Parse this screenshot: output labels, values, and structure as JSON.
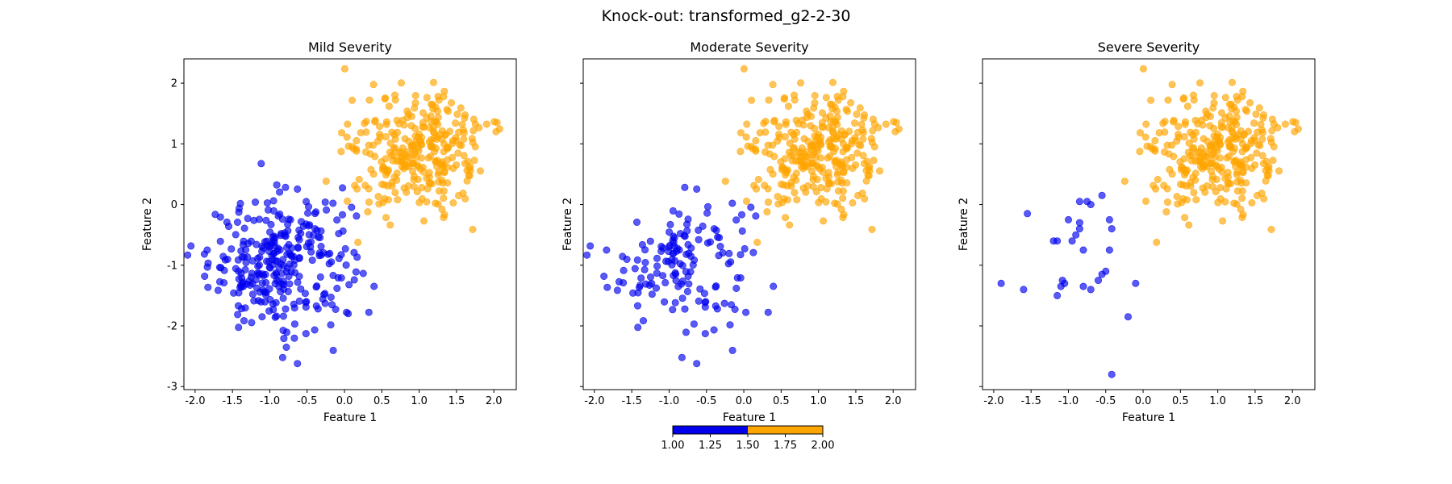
{
  "figure": {
    "title": "Knock-out: transformed_g2-2-30"
  },
  "colors": {
    "class1": "#0000ee",
    "class2": "#ffa500"
  },
  "colorbar": {
    "ticks": [
      "1.00",
      "1.25",
      "1.50",
      "1.75",
      "2.00"
    ],
    "range": [
      1.0,
      2.0
    ],
    "split": 1.5
  },
  "chart_data": [
    {
      "type": "scatter",
      "title": "Mild Severity",
      "xlabel": "Feature 1",
      "ylabel": "Feature 2",
      "xlim": [
        -2.15,
        2.3
      ],
      "ylim": [
        -3.05,
        2.4
      ],
      "xticks": [
        "-2.0",
        "-1.5",
        "-1.0",
        "-0.5",
        "0.0",
        "0.5",
        "1.0",
        "1.5",
        "2.0"
      ],
      "yticks": [
        "-3",
        "-2",
        "-1",
        "0",
        "1",
        "2"
      ],
      "grid": false,
      "series": [
        {
          "color_key": "class1",
          "count": 300,
          "center": [
            -0.85,
            -0.95
          ],
          "spread": [
            0.48,
            0.55
          ]
        },
        {
          "color_key": "class2",
          "count": 300,
          "center": [
            1.0,
            0.85
          ],
          "spread": [
            0.45,
            0.5
          ]
        }
      ]
    },
    {
      "type": "scatter",
      "title": "Moderate Severity",
      "xlabel": "Feature 1",
      "ylabel": "Feature 2",
      "xlim": [
        -2.15,
        2.3
      ],
      "ylim": [
        -3.05,
        2.4
      ],
      "xticks": [
        "-2.0",
        "-1.5",
        "-1.0",
        "-0.5",
        "0.0",
        "0.5",
        "1.0",
        "1.5",
        "2.0"
      ],
      "yticks": [],
      "grid": false,
      "series": [
        {
          "color_key": "class1",
          "count": 150,
          "center": [
            -0.85,
            -0.95
          ],
          "spread": [
            0.48,
            0.55
          ]
        },
        {
          "color_key": "class2",
          "count": 300,
          "center": [
            1.0,
            0.85
          ],
          "spread": [
            0.45,
            0.5
          ]
        }
      ]
    },
    {
      "type": "scatter",
      "title": "Severe Severity",
      "xlabel": "Feature 1",
      "ylabel": "Feature 2",
      "xlim": [
        -2.15,
        2.3
      ],
      "ylim": [
        -3.05,
        2.4
      ],
      "xticks": [
        "-2.0",
        "-1.5",
        "-1.0",
        "-0.5",
        "0.0",
        "0.5",
        "1.0",
        "1.5",
        "2.0"
      ],
      "yticks": [],
      "grid": false,
      "series": [
        {
          "color_key": "class1",
          "count": 30,
          "points": [
            [
              -1.9,
              -1.3
            ],
            [
              -1.6,
              -1.4
            ],
            [
              -1.55,
              -0.15
            ],
            [
              -1.2,
              -0.6
            ],
            [
              -1.15,
              -0.6
            ],
            [
              -1.1,
              -1.35
            ],
            [
              -1.08,
              -1.25
            ],
            [
              -1.05,
              -1.3
            ],
            [
              -1.15,
              -1.5
            ],
            [
              -1.0,
              -0.25
            ],
            [
              -0.95,
              -0.6
            ],
            [
              -0.9,
              -0.5
            ],
            [
              -0.85,
              0.05
            ],
            [
              -0.85,
              -0.3
            ],
            [
              -0.8,
              -1.35
            ],
            [
              -0.8,
              -0.75
            ],
            [
              -0.85,
              -0.4
            ],
            [
              -0.75,
              0.05
            ],
            [
              -0.7,
              -1.4
            ],
            [
              -0.7,
              0.0
            ],
            [
              -0.6,
              -1.25
            ],
            [
              -0.55,
              -1.15
            ],
            [
              -0.55,
              0.15
            ],
            [
              -0.5,
              -1.1
            ],
            [
              -0.45,
              -0.25
            ],
            [
              -0.42,
              -0.4
            ],
            [
              -0.45,
              -0.75
            ],
            [
              -0.2,
              -1.85
            ],
            [
              -0.1,
              -1.3
            ],
            [
              -0.42,
              -2.8
            ]
          ]
        },
        {
          "color_key": "class2",
          "count": 300,
          "center": [
            1.0,
            0.85
          ],
          "spread": [
            0.45,
            0.5
          ]
        }
      ]
    }
  ]
}
